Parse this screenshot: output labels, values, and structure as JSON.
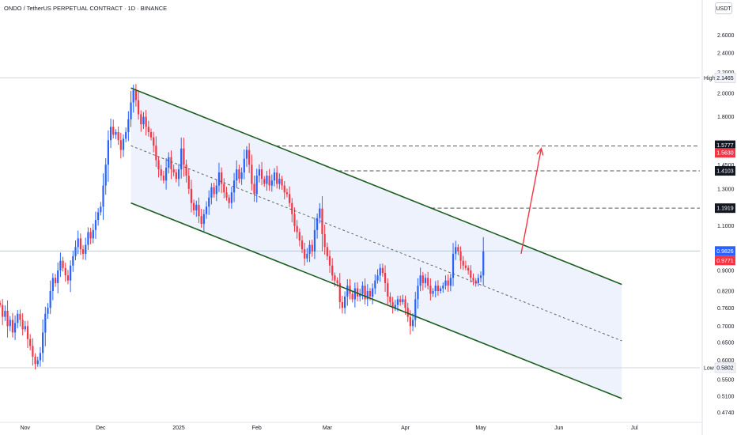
{
  "header": {
    "title": "ONDO / TetherUS PERPETUAL CONTRACT · 1D · BINANCE",
    "currency": "USDT"
  },
  "colors": {
    "up": "#2962ff",
    "down": "#f23645",
    "channel": "#1b5e20",
    "channel_fill": "#e8eefc",
    "arrow": "#f23645",
    "level_line": "#555555",
    "price_line": "#90caf9"
  },
  "chart_data": {
    "type": "candlestick",
    "title": "ONDO / TetherUS PERPETUAL CONTRACT · 1D · BINANCE",
    "scale": "log",
    "ylim": [
      0.46,
      2.9
    ],
    "y_ticks": [
      2.6,
      2.4,
      2.2,
      2.0,
      1.8,
      1.45,
      1.3,
      1.1,
      0.9,
      0.82,
      0.76,
      0.7,
      0.65,
      0.6,
      0.55,
      0.51,
      0.474
    ],
    "y_tick_labels": [
      "2.6000",
      "2.4000",
      "2.2000",
      "2.0000",
      "1.8000",
      "1.4500",
      "1.3000",
      "1.1000",
      "0.9000",
      "0.8200",
      "0.7600",
      "0.7000",
      "0.6500",
      "0.6000",
      "0.5500",
      "0.5100",
      "0.4740"
    ],
    "x_labels": [
      {
        "date": "2024-11-01",
        "label": "Nov"
      },
      {
        "date": "2024-12-01",
        "label": "Dec"
      },
      {
        "date": "2025-01-01",
        "label": "2025"
      },
      {
        "date": "2025-02-01",
        "label": "Feb"
      },
      {
        "date": "2025-03-01",
        "label": "Mar"
      },
      {
        "date": "2025-04-01",
        "label": "Apr"
      },
      {
        "date": "2025-05-01",
        "label": "May"
      },
      {
        "date": "2025-06-01",
        "label": "Jun"
      },
      {
        "date": "2025-07-01",
        "label": "Jul"
      }
    ],
    "x_range": [
      "2024-10-22",
      "2025-07-27"
    ],
    "start_date": "2024-10-22",
    "closes": [
      0.77,
      0.73,
      0.75,
      0.7,
      0.72,
      0.68,
      0.71,
      0.74,
      0.72,
      0.69,
      0.7,
      0.66,
      0.64,
      0.61,
      0.59,
      0.6,
      0.62,
      0.68,
      0.74,
      0.76,
      0.82,
      0.87,
      0.85,
      0.9,
      0.94,
      0.91,
      0.88,
      0.86,
      0.92,
      0.96,
      1.0,
      1.04,
      0.99,
      0.97,
      1.01,
      1.07,
      1.04,
      1.08,
      1.13,
      1.17,
      1.2,
      1.32,
      1.45,
      1.62,
      1.72,
      1.66,
      1.68,
      1.62,
      1.55,
      1.63,
      1.68,
      1.78,
      1.92,
      2.03,
      1.94,
      1.82,
      1.74,
      1.8,
      1.72,
      1.68,
      1.64,
      1.58,
      1.48,
      1.42,
      1.38,
      1.35,
      1.43,
      1.5,
      1.42,
      1.4,
      1.36,
      1.42,
      1.56,
      1.45,
      1.38,
      1.3,
      1.22,
      1.18,
      1.21,
      1.15,
      1.11,
      1.16,
      1.2,
      1.25,
      1.31,
      1.27,
      1.32,
      1.4,
      1.33,
      1.28,
      1.25,
      1.22,
      1.28,
      1.35,
      1.42,
      1.36,
      1.4,
      1.49,
      1.55,
      1.45,
      1.33,
      1.27,
      1.38,
      1.42,
      1.36,
      1.33,
      1.38,
      1.32,
      1.35,
      1.4,
      1.33,
      1.36,
      1.32,
      1.28,
      1.27,
      1.22,
      1.16,
      1.1,
      1.07,
      1.03,
      0.99,
      0.95,
      0.97,
      1.01,
      0.98,
      1.08,
      1.14,
      1.19,
      1.06,
      1.0,
      0.96,
      0.92,
      0.88,
      0.86,
      0.85,
      0.78,
      0.76,
      0.8,
      0.84,
      0.81,
      0.79,
      0.83,
      0.8,
      0.81,
      0.84,
      0.79,
      0.82,
      0.8,
      0.83,
      0.86,
      0.88,
      0.91,
      0.89,
      0.85,
      0.8,
      0.78,
      0.76,
      0.77,
      0.79,
      0.78,
      0.79,
      0.76,
      0.73,
      0.7,
      0.72,
      0.79,
      0.84,
      0.88,
      0.85,
      0.87,
      0.84,
      0.81,
      0.82,
      0.84,
      0.82,
      0.83,
      0.84,
      0.86,
      0.84,
      0.87,
      0.97,
      1.0,
      0.98,
      0.94,
      0.92,
      0.91,
      0.9,
      0.87,
      0.86,
      0.85,
      0.87,
      0.88,
      0.98
    ],
    "levels": [
      {
        "label": "High",
        "value": 2.1465,
        "text": "2.1465"
      },
      {
        "label": "Low",
        "value": 0.5802,
        "text": "0.5802"
      }
    ],
    "horizontal_levels": [
      {
        "value": 1.5777,
        "text": "1.5777",
        "style": "black"
      },
      {
        "value": 1.563,
        "text": "1.5630",
        "style": "red"
      },
      {
        "value": 1.4103,
        "text": "1.4103",
        "style": "black"
      },
      {
        "value": 1.1919,
        "text": "1.1919",
        "style": "black"
      }
    ],
    "current_price": {
      "value": 0.9826,
      "text": "0.9826"
    },
    "countdown_price": {
      "value": 0.9771,
      "text": "0.9771"
    },
    "channel": {
      "upper": [
        {
          "date": "2024-12-13",
          "price": 2.05
        },
        {
          "date": "2025-06-26",
          "price": 0.845
        }
      ],
      "lower": [
        {
          "date": "2024-12-13",
          "price": 1.22
        },
        {
          "date": "2025-06-26",
          "price": 0.505
        }
      ],
      "mid": [
        {
          "date": "2024-12-13",
          "price": 1.58
        },
        {
          "date": "2025-06-26",
          "price": 0.655
        }
      ]
    },
    "projection_arrow": {
      "from": {
        "date": "2025-05-17",
        "price": 0.97
      },
      "to": {
        "date": "2025-05-25",
        "price": 1.56
      }
    },
    "grid": false
  }
}
